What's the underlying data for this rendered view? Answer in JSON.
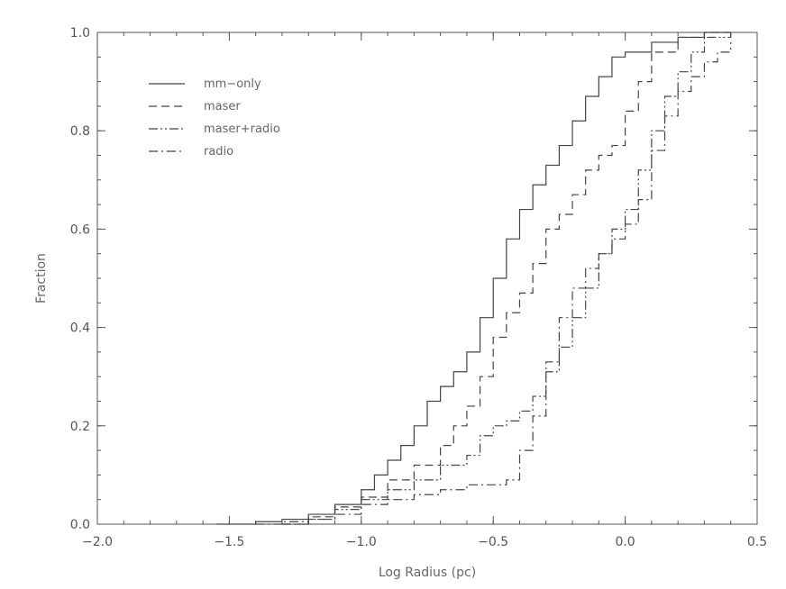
{
  "chart_data": {
    "type": "line",
    "title": "",
    "xlabel": "Log Radius (pc)",
    "ylabel": "Fraction",
    "xlim": [
      -2.0,
      0.5
    ],
    "ylim": [
      0.0,
      1.0
    ],
    "x_ticks": [
      "-2.0",
      "-1.5",
      "-1.0",
      "-0.5",
      "0.0",
      "0.5"
    ],
    "y_ticks": [
      "0.0",
      "0.2",
      "0.4",
      "0.6",
      "0.8",
      "1.0"
    ],
    "grid": false,
    "legend_position": "top-left",
    "colors": {
      "axis": "#555555",
      "series": "#444444",
      "text": "#666666"
    },
    "series": [
      {
        "name": "mm−only",
        "dash": "solid",
        "points": [
          [
            -1.55,
            0.0
          ],
          [
            -1.4,
            0.005
          ],
          [
            -1.3,
            0.01
          ],
          [
            -1.2,
            0.02
          ],
          [
            -1.1,
            0.04
          ],
          [
            -1.0,
            0.07
          ],
          [
            -0.95,
            0.1
          ],
          [
            -0.9,
            0.13
          ],
          [
            -0.85,
            0.16
          ],
          [
            -0.8,
            0.2
          ],
          [
            -0.75,
            0.25
          ],
          [
            -0.7,
            0.28
          ],
          [
            -0.65,
            0.31
          ],
          [
            -0.6,
            0.35
          ],
          [
            -0.55,
            0.42
          ],
          [
            -0.5,
            0.5
          ],
          [
            -0.45,
            0.58
          ],
          [
            -0.4,
            0.64
          ],
          [
            -0.35,
            0.69
          ],
          [
            -0.3,
            0.73
          ],
          [
            -0.25,
            0.77
          ],
          [
            -0.2,
            0.82
          ],
          [
            -0.15,
            0.87
          ],
          [
            -0.1,
            0.91
          ],
          [
            -0.05,
            0.95
          ],
          [
            0.0,
            0.96
          ],
          [
            0.1,
            0.98
          ],
          [
            0.2,
            0.99
          ],
          [
            0.3,
            1.0
          ],
          [
            0.4,
            1.0
          ]
        ]
      },
      {
        "name": "maser",
        "dash": "dash",
        "points": [
          [
            -1.3,
            0.0
          ],
          [
            -1.2,
            0.015
          ],
          [
            -1.1,
            0.035
          ],
          [
            -1.0,
            0.055
          ],
          [
            -0.9,
            0.09
          ],
          [
            -0.8,
            0.12
          ],
          [
            -0.7,
            0.16
          ],
          [
            -0.65,
            0.2
          ],
          [
            -0.6,
            0.24
          ],
          [
            -0.55,
            0.3
          ],
          [
            -0.5,
            0.38
          ],
          [
            -0.45,
            0.43
          ],
          [
            -0.4,
            0.47
          ],
          [
            -0.35,
            0.53
          ],
          [
            -0.3,
            0.6
          ],
          [
            -0.25,
            0.63
          ],
          [
            -0.2,
            0.67
          ],
          [
            -0.15,
            0.72
          ],
          [
            -0.1,
            0.75
          ],
          [
            -0.05,
            0.77
          ],
          [
            0.0,
            0.84
          ],
          [
            0.05,
            0.9
          ],
          [
            0.1,
            0.96
          ],
          [
            0.2,
            0.99
          ],
          [
            0.3,
            1.0
          ],
          [
            0.4,
            1.0
          ]
        ]
      },
      {
        "name": "maser+radio",
        "dash": "dashdotdot",
        "points": [
          [
            -1.3,
            0.0
          ],
          [
            -1.2,
            0.01
          ],
          [
            -1.1,
            0.03
          ],
          [
            -1.0,
            0.05
          ],
          [
            -0.9,
            0.07
          ],
          [
            -0.8,
            0.09
          ],
          [
            -0.7,
            0.12
          ],
          [
            -0.6,
            0.14
          ],
          [
            -0.55,
            0.18
          ],
          [
            -0.5,
            0.2
          ],
          [
            -0.45,
            0.21
          ],
          [
            -0.4,
            0.23
          ],
          [
            -0.35,
            0.26
          ],
          [
            -0.3,
            0.31
          ],
          [
            -0.25,
            0.36
          ],
          [
            -0.2,
            0.42
          ],
          [
            -0.15,
            0.48
          ],
          [
            -0.1,
            0.55
          ],
          [
            -0.05,
            0.6
          ],
          [
            0.0,
            0.64
          ],
          [
            0.05,
            0.72
          ],
          [
            0.1,
            0.8
          ],
          [
            0.15,
            0.87
          ],
          [
            0.2,
            0.92
          ],
          [
            0.25,
            0.96
          ],
          [
            0.3,
            0.99
          ],
          [
            0.4,
            1.0
          ]
        ]
      },
      {
        "name": "radio",
        "dash": "dashdot",
        "points": [
          [
            -1.4,
            0.0
          ],
          [
            -1.3,
            0.005
          ],
          [
            -1.2,
            0.01
          ],
          [
            -1.1,
            0.02
          ],
          [
            -1.0,
            0.04
          ],
          [
            -0.9,
            0.05
          ],
          [
            -0.8,
            0.06
          ],
          [
            -0.7,
            0.07
          ],
          [
            -0.6,
            0.08
          ],
          [
            -0.45,
            0.09
          ],
          [
            -0.4,
            0.15
          ],
          [
            -0.35,
            0.22
          ],
          [
            -0.3,
            0.33
          ],
          [
            -0.25,
            0.42
          ],
          [
            -0.2,
            0.48
          ],
          [
            -0.15,
            0.52
          ],
          [
            -0.1,
            0.55
          ],
          [
            -0.05,
            0.58
          ],
          [
            0.0,
            0.61
          ],
          [
            0.05,
            0.66
          ],
          [
            0.1,
            0.76
          ],
          [
            0.15,
            0.83
          ],
          [
            0.2,
            0.88
          ],
          [
            0.25,
            0.91
          ],
          [
            0.3,
            0.94
          ],
          [
            0.35,
            0.96
          ],
          [
            0.4,
            0.98
          ]
        ]
      }
    ]
  }
}
